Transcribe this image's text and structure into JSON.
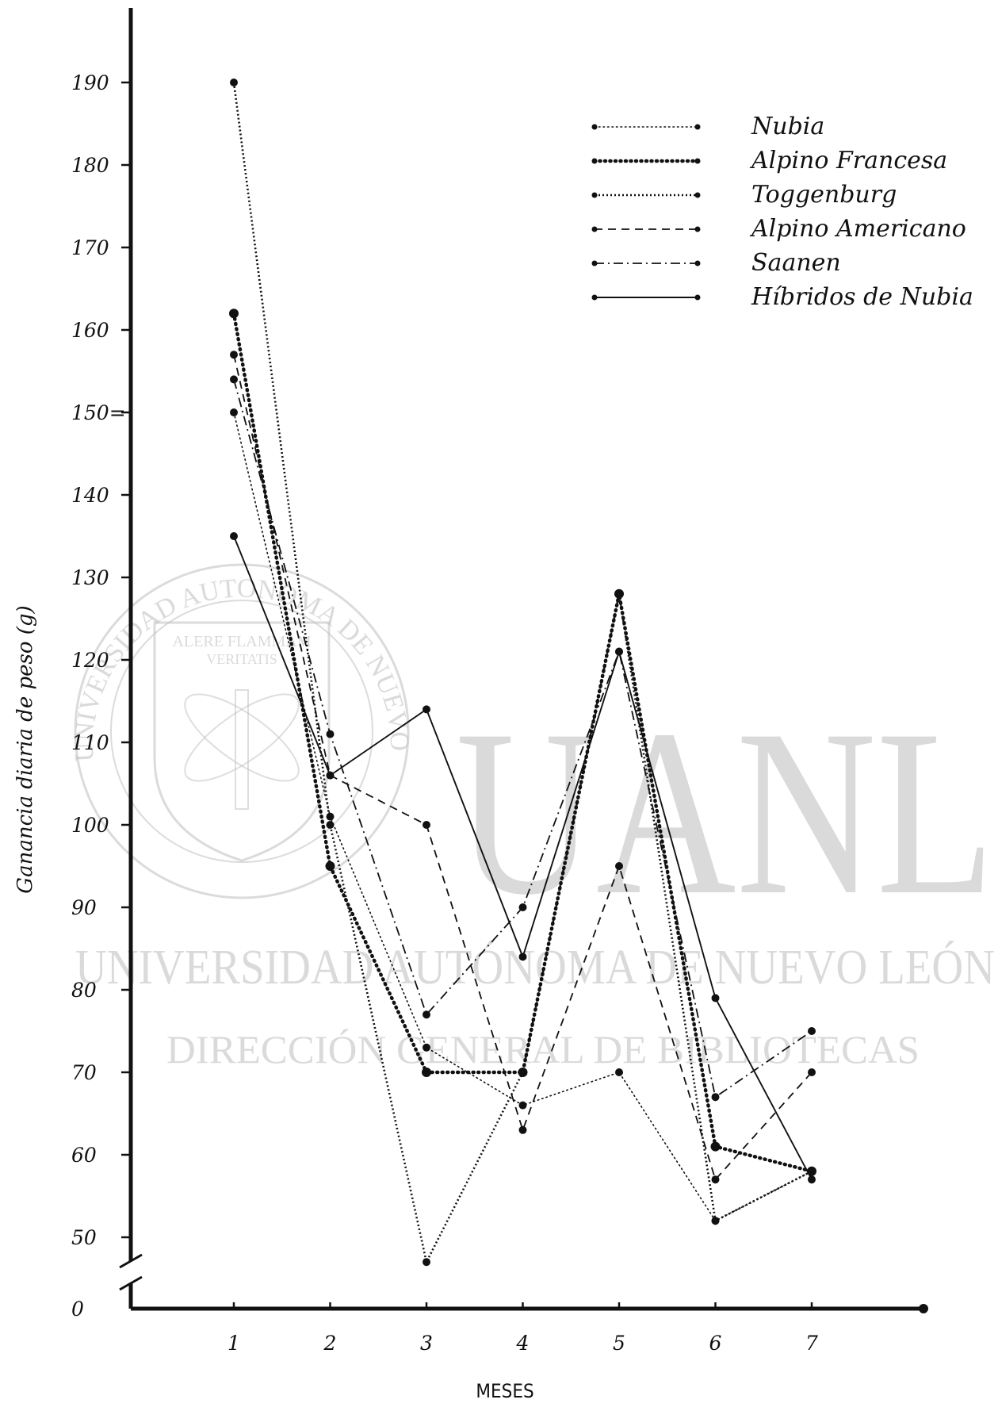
{
  "chart_data": {
    "type": "line",
    "xlabel": "MESES",
    "ylabel": "Ganancia diaria de peso (g)",
    "categories": [
      "1",
      "2",
      "3",
      "4",
      "5",
      "6",
      "7"
    ],
    "y_ticks": [
      "0",
      "50",
      "60",
      "70",
      "80",
      "90",
      "100",
      "110",
      "120",
      "130",
      "140",
      "150=",
      "160",
      "170",
      "180",
      "190"
    ],
    "y_axis_break": true,
    "ylim": [
      50,
      190
    ],
    "grid": false,
    "legend_position": "top-right",
    "series": [
      {
        "name": "Nubia",
        "style": "dotted",
        "values": [
          150,
          101,
          73,
          66,
          70,
          52,
          58
        ]
      },
      {
        "name": "Alpino Francesa",
        "style": "heavy-dotted",
        "values": [
          162,
          95,
          70,
          70,
          128,
          61,
          58
        ]
      },
      {
        "name": "Toggenburg",
        "style": "wavy",
        "values": [
          190,
          100,
          47,
          70,
          128,
          52,
          58
        ]
      },
      {
        "name": "Alpino Americano",
        "style": "dashed",
        "values": [
          157,
          106,
          100,
          63,
          95,
          57,
          70
        ]
      },
      {
        "name": "Saanen",
        "style": "dash-dot",
        "values": [
          154,
          111,
          77,
          90,
          121,
          67,
          75
        ]
      },
      {
        "name": "Híbridos de Nubia",
        "style": "solid",
        "values": [
          135,
          106,
          114,
          84,
          121,
          79,
          57
        ]
      }
    ]
  },
  "watermark": {
    "big_letters": "UANL",
    "line1": "UNIVERSIDAD AUTÓNOMA DE NUEVO LEÓN",
    "line2": "DIRECCIÓN GENERAL DE BIBLIOTECAS",
    "seal_ring": "UNIVERSIDAD AUTONOMA DE NUEVO LEON",
    "seal_motto_1": "ALERE FLAMMAM",
    "seal_motto_2": "VERITATIS"
  },
  "colors": {
    "ink": "#111111",
    "watermark": "#bdbdbd"
  }
}
